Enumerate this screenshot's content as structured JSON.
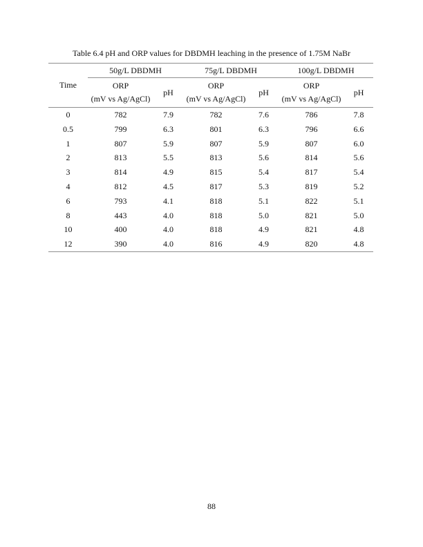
{
  "document": {
    "title": "Table 6.4 pH and ORP values for DBDMH leaching in the presence of 1.75M NaBr",
    "page_number": "88"
  },
  "table": {
    "time_header": "Time",
    "groups": [
      {
        "label": "50g/L DBDMH",
        "orp_header_line1": "ORP",
        "orp_header_line2": "(mV vs Ag/AgCl)",
        "ph_header": "pH"
      },
      {
        "label": "75g/L DBDMH",
        "orp_header_line1": "ORP",
        "orp_header_line2": "(mV vs Ag/AgCl)",
        "ph_header": "pH"
      },
      {
        "label": "100g/L DBDMH",
        "orp_header_line1": "ORP",
        "orp_header_line2": "(mV vs Ag/AgCl)",
        "ph_header": "pH"
      }
    ],
    "column_keys": [
      "time",
      "orp_50",
      "ph_50",
      "orp_75",
      "ph_75",
      "orp_100",
      "ph_100"
    ],
    "rows": [
      [
        "0",
        "782",
        "7.9",
        "782",
        "7.6",
        "786",
        "7.8"
      ],
      [
        "0.5",
        "799",
        "6.3",
        "801",
        "6.3",
        "796",
        "6.6"
      ],
      [
        "1",
        "807",
        "5.9",
        "807",
        "5.9",
        "807",
        "6.0"
      ],
      [
        "2",
        "813",
        "5.5",
        "813",
        "5.6",
        "814",
        "5.6"
      ],
      [
        "3",
        "814",
        "4.9",
        "815",
        "5.4",
        "817",
        "5.4"
      ],
      [
        "4",
        "812",
        "4.5",
        "817",
        "5.3",
        "819",
        "5.2"
      ],
      [
        "6",
        "793",
        "4.1",
        "818",
        "5.1",
        "822",
        "5.1"
      ],
      [
        "8",
        "443",
        "4.0",
        "818",
        "5.0",
        "821",
        "5.0"
      ],
      [
        "10",
        "400",
        "4.0",
        "818",
        "4.9",
        "821",
        "4.8"
      ],
      [
        "12",
        "390",
        "4.0",
        "816",
        "4.9",
        "820",
        "4.8"
      ]
    ]
  }
}
